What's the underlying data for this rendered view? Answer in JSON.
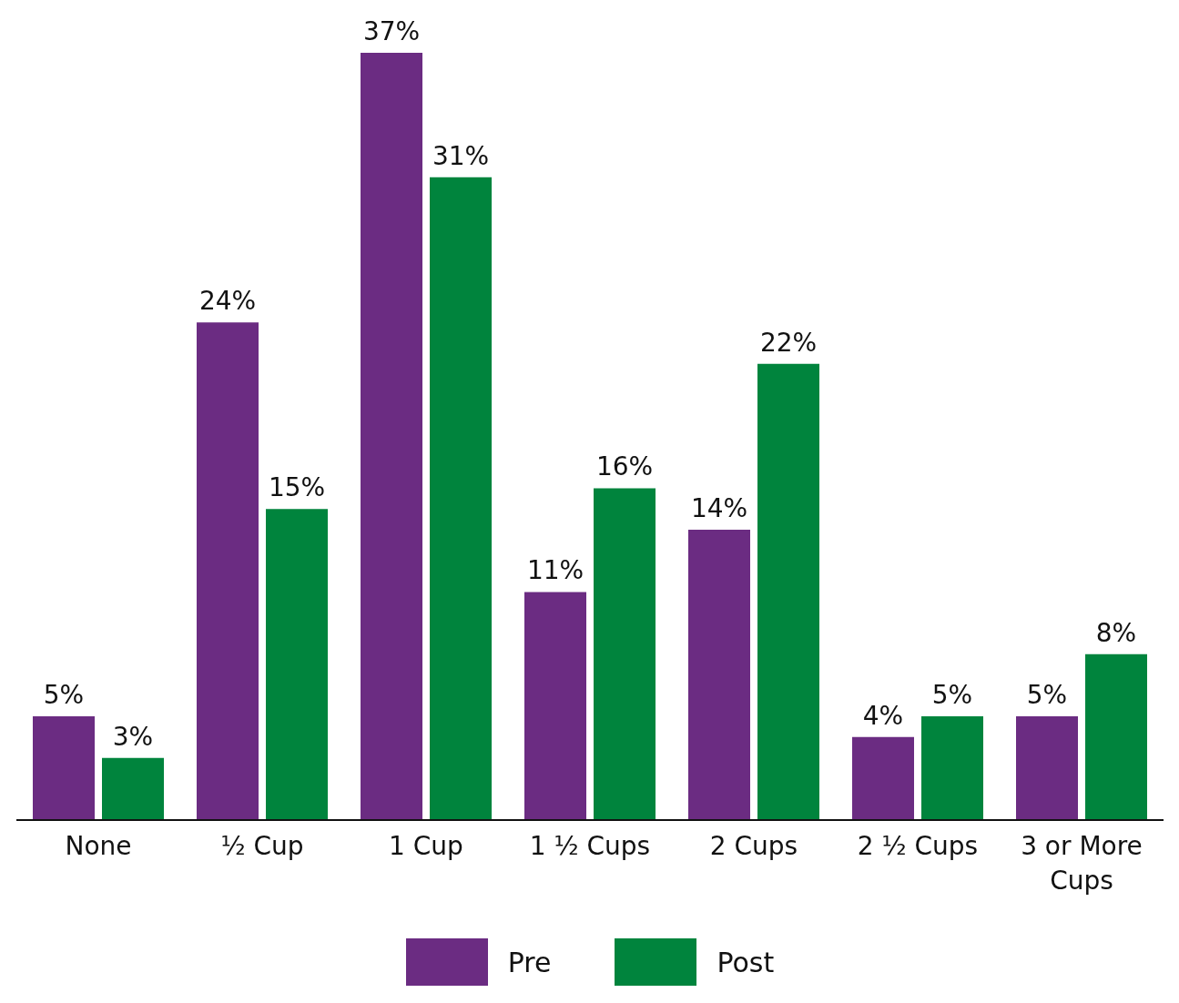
{
  "chart_data": {
    "type": "bar",
    "categories": [
      "None",
      "½ Cup",
      "1 Cup",
      "1 ½ Cups",
      "2 Cups",
      "2 ½ Cups",
      "3 or More Cups"
    ],
    "series": [
      {
        "name": "Pre",
        "color": "#6b2c82",
        "values": [
          5,
          24,
          37,
          11,
          14,
          4,
          5
        ],
        "value_labels": [
          "5%",
          "24%",
          "37%",
          "11%",
          "14%",
          "4%",
          "5%"
        ]
      },
      {
        "name": "Post",
        "color": "#00843d",
        "values": [
          3,
          15,
          31,
          16,
          22,
          5,
          8
        ],
        "value_labels": [
          "3%",
          "15%",
          "31%",
          "16%",
          "22%",
          "5%",
          "8%"
        ]
      }
    ],
    "grid": false,
    "legend": "bottom"
  }
}
